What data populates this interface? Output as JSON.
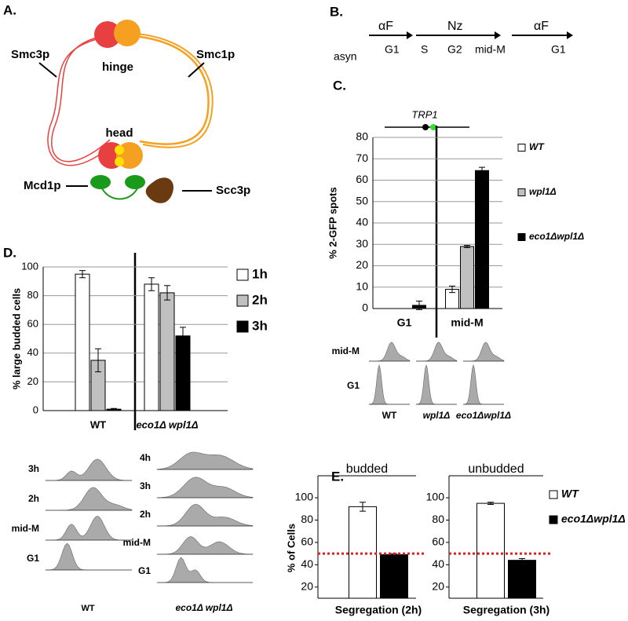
{
  "panels": [
    "A.",
    "B.",
    "C.",
    "D.",
    "E."
  ],
  "diagram": {
    "labels": [
      "Smc3p",
      "Smc1p",
      "hinge",
      "head",
      "Mcd1p",
      "Scc3p"
    ]
  },
  "scheme": {
    "arrows": [
      "αF",
      "Nz",
      "αF"
    ],
    "stages": [
      "asyn",
      "G1",
      "S",
      "G2",
      "mid-M",
      "G1"
    ]
  },
  "facs_c": {
    "rows": [
      "mid-M",
      "G1"
    ],
    "columns": [
      "WT",
      "wpl1Δ",
      "eco1Δwpl1Δ"
    ]
  },
  "facs_d": {
    "left_rows": [
      "3h",
      "2h",
      "mid-M",
      "G1"
    ],
    "left_label": "WT",
    "right_rows": [
      "4h",
      "3h",
      "2h",
      "mid-M",
      "G1"
    ],
    "right_label": "eco1Δ wpl1Δ"
  },
  "chart_data": [
    {
      "type": "bar",
      "ylabel": "% 2-GFP spots",
      "annotation": "TRP1",
      "categories": [
        "G1",
        "mid-M"
      ],
      "series": [
        {
          "name": "WT",
          "color": "#ffffff",
          "values": [
            0,
            9
          ],
          "errors": [
            0,
            1.5
          ]
        },
        {
          "name": "wpl1Δ",
          "color": "#c0c0c0",
          "values": [
            0,
            29
          ],
          "errors": [
            0,
            0.5
          ]
        },
        {
          "name": "eco1Δwpl1Δ",
          "color": "#000000",
          "values": [
            1.5,
            64.5
          ],
          "errors": [
            2,
            1.5
          ]
        }
      ],
      "ylim": [
        0,
        80
      ],
      "yticks": [
        0,
        10,
        20,
        30,
        40,
        50,
        60,
        70,
        80
      ],
      "grid": true
    },
    {
      "type": "bar",
      "ylabel": "% large budded cells",
      "categories": [
        "WT",
        "eco1Δ wpl1Δ"
      ],
      "series": [
        {
          "name": "1h",
          "color": "#ffffff",
          "values": [
            95,
            88
          ],
          "errors": [
            2.5,
            4.5
          ]
        },
        {
          "name": "2h",
          "color": "#c0c0c0",
          "values": [
            35,
            82
          ],
          "errors": [
            8,
            5
          ]
        },
        {
          "name": "3h",
          "color": "#000000",
          "values": [
            1,
            52
          ],
          "errors": [
            0.5,
            6
          ]
        }
      ],
      "ylim": [
        0,
        100
      ],
      "yticks": [
        0,
        20,
        40,
        60,
        80,
        100
      ],
      "grid": true
    },
    {
      "type": "bar",
      "title": "budded",
      "ylabel": "% of Cells",
      "categories": [
        "Segregation (2h)"
      ],
      "series": [
        {
          "name": "WT",
          "color": "#ffffff",
          "values": [
            92
          ],
          "errors": [
            4
          ]
        },
        {
          "name": "eco1Δwpl1Δ",
          "color": "#000000",
          "values": [
            49
          ],
          "errors": [
            1
          ]
        }
      ],
      "ylim": [
        10,
        100
      ],
      "yticks": [
        20,
        40,
        60,
        80,
        100
      ],
      "grid": false,
      "reference_line": 50,
      "reference_color": "#e02020"
    },
    {
      "type": "bar",
      "title": "unbudded",
      "categories": [
        "Segregation (3h)"
      ],
      "series": [
        {
          "color": "#ffffff",
          "values": [
            95
          ],
          "errors": [
            1
          ]
        },
        {
          "color": "#000000",
          "values": [
            44
          ],
          "errors": [
            1.5
          ]
        }
      ],
      "ylim": [
        10,
        100
      ],
      "yticks": [
        20,
        40,
        60,
        80,
        100
      ],
      "grid": false,
      "reference_line": 50,
      "reference_color": "#e02020"
    }
  ]
}
